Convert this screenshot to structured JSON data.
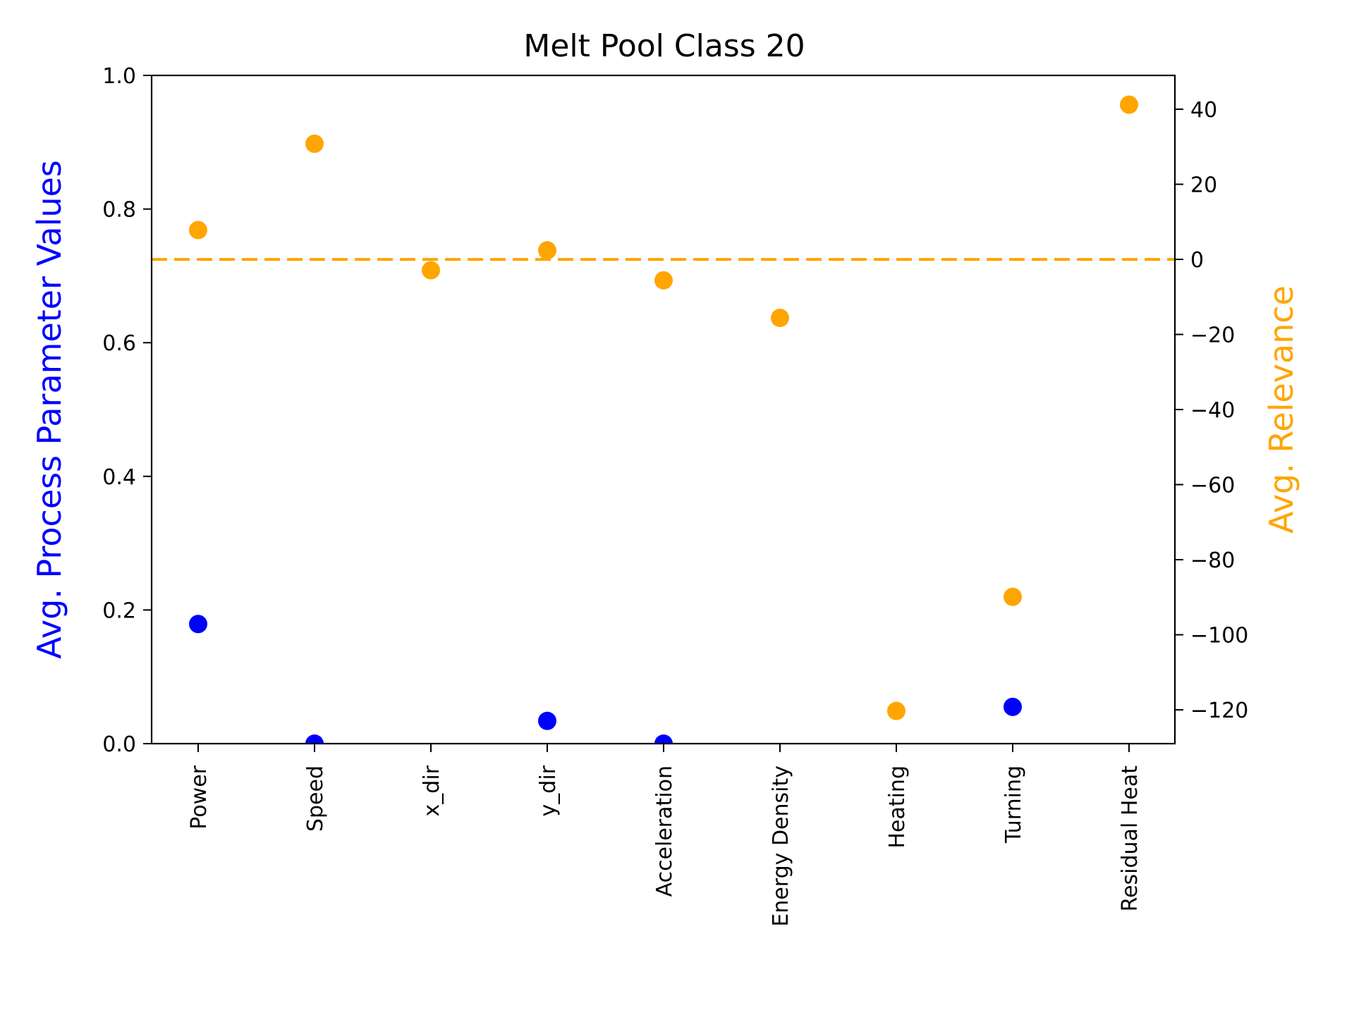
{
  "chart_data": {
    "type": "scatter",
    "title": "Melt Pool Class 20",
    "categories": [
      "Power",
      "Speed",
      "x_dir",
      "y_dir",
      "Acceleration",
      "Energy Density",
      "Heating",
      "Turning",
      "Residual Heat"
    ],
    "left_axis": {
      "label": "Avg. Process Parameter Values",
      "color": "#0000ff",
      "ylim": [
        0.0,
        1.0
      ],
      "ticks": [
        "0.0",
        "0.2",
        "0.4",
        "0.6",
        "0.8",
        "1.0"
      ]
    },
    "right_axis": {
      "label": "Avg. Relevance",
      "color": "#ffa500",
      "ylim": [
        -129,
        49
      ],
      "ticks": [
        "−120",
        "−100",
        "−80",
        "−60",
        "−40",
        "−20",
        "0",
        "20",
        "40"
      ]
    },
    "series": [
      {
        "axis": "left",
        "color": "#0000ff",
        "values": [
          0.179,
          0.0,
          null,
          0.034,
          0.0,
          null,
          null,
          0.055,
          null
        ]
      },
      {
        "axis": "right",
        "color": "#ffa500",
        "values": [
          7.8,
          30.8,
          -2.9,
          2.4,
          -5.6,
          -15.6,
          -120.3,
          -89.9,
          41.2
        ]
      }
    ],
    "reference_line": {
      "axis": "right",
      "value": 0,
      "style": "dashed",
      "color": "#ffa500"
    },
    "grid": false
  }
}
